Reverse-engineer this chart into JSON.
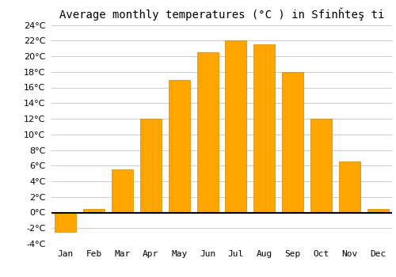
{
  "title": "Average monthly temperatures (°C ) in Sfinȟteş ti",
  "months": [
    "Jan",
    "Feb",
    "Mar",
    "Apr",
    "May",
    "Jun",
    "Jul",
    "Aug",
    "Sep",
    "Oct",
    "Nov",
    "Dec"
  ],
  "values": [
    -2.5,
    0.5,
    5.5,
    12.0,
    17.0,
    20.5,
    22.0,
    21.5,
    18.0,
    12.0,
    6.5,
    0.5
  ],
  "bar_color": "#FFA500",
  "bar_edge_color": "#CC8800",
  "ylim": [
    -4,
    24
  ],
  "yticks": [
    -4,
    -2,
    0,
    2,
    4,
    6,
    8,
    10,
    12,
    14,
    16,
    18,
    20,
    22,
    24
  ],
  "background_color": "#ffffff",
  "grid_color": "#cccccc",
  "title_fontsize": 10,
  "tick_fontsize": 8
}
